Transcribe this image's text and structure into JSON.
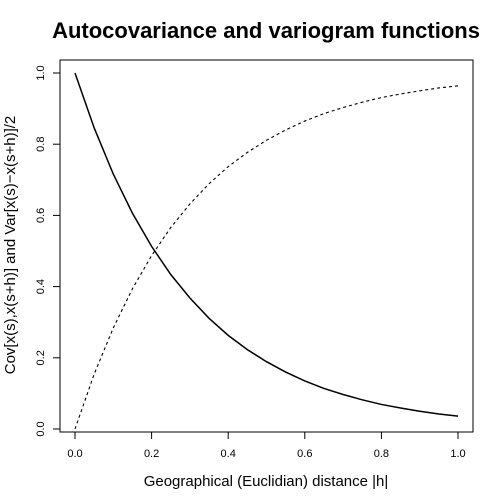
{
  "chart_data": {
    "type": "line",
    "title": "Autocovariance and variogram functions",
    "xlabel": "Geographical (Euclidian) distance |h|",
    "ylabel": "Cov[x(s),x(s+h)] and  Var[x(s)−x(s+h)]/2",
    "xlim": [
      0.0,
      1.0
    ],
    "ylim": [
      0.0,
      1.0
    ],
    "xticks": [
      "0.0",
      "0.2",
      "0.4",
      "0.6",
      "0.8",
      "1.0"
    ],
    "yticks": [
      "0.0",
      "0.2",
      "0.4",
      "0.6",
      "0.8",
      "1.0"
    ],
    "grid": false,
    "x": [
      0.0,
      0.05,
      0.1,
      0.15,
      0.2,
      0.25,
      0.3,
      0.35,
      0.4,
      0.45,
      0.5,
      0.55,
      0.6,
      0.65,
      0.7,
      0.75,
      0.8,
      0.85,
      0.9,
      0.95,
      1.0
    ],
    "series": [
      {
        "line_style": "solid",
        "values": [
          1.0,
          0.846,
          0.716,
          0.606,
          0.513,
          0.434,
          0.368,
          0.311,
          0.263,
          0.223,
          0.189,
          0.16,
          0.135,
          0.114,
          0.097,
          0.082,
          0.069,
          0.059,
          0.05,
          0.042,
          0.036
        ]
      },
      {
        "line_style": "dashed",
        "values": [
          0.0,
          0.154,
          0.284,
          0.394,
          0.487,
          0.566,
          0.632,
          0.689,
          0.737,
          0.777,
          0.811,
          0.84,
          0.865,
          0.886,
          0.903,
          0.918,
          0.931,
          0.941,
          0.95,
          0.958,
          0.964
        ]
      }
    ]
  }
}
